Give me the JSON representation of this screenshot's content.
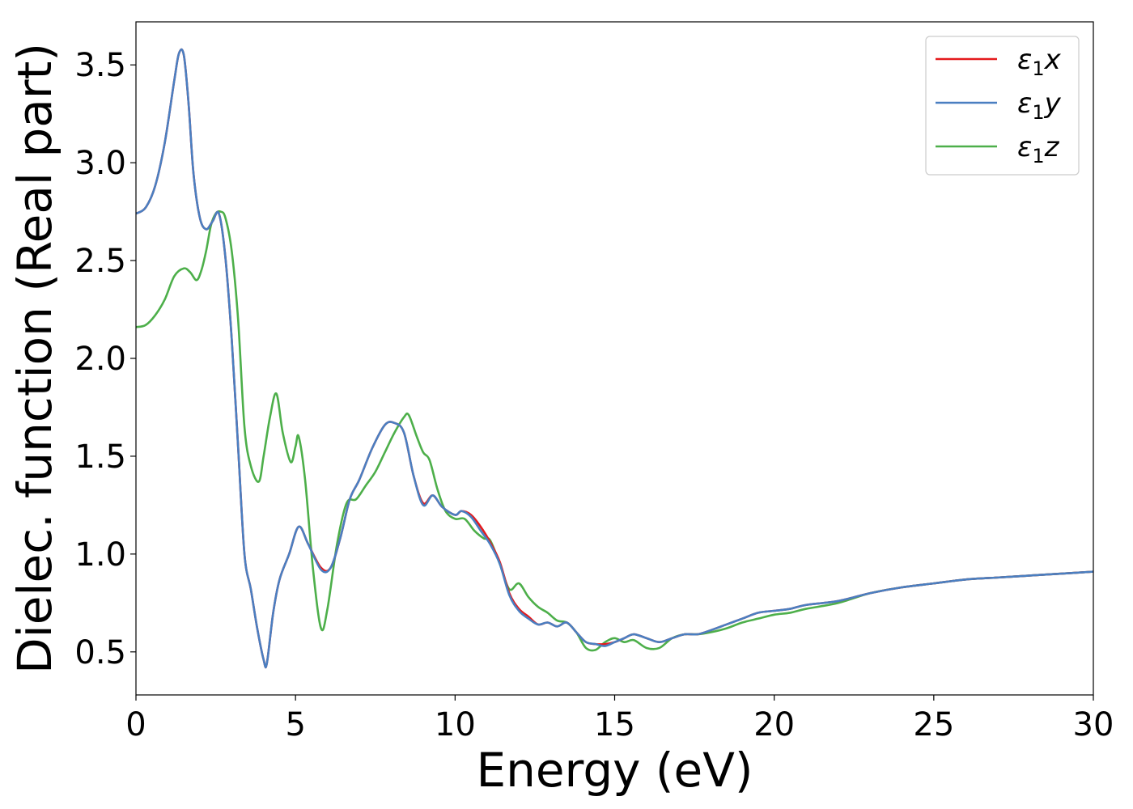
{
  "chart_data": {
    "type": "line",
    "title": "",
    "xlabel": "Energy (eV)",
    "ylabel": "Dielec. function (Real part)",
    "xlim": [
      0,
      30
    ],
    "ylim": [
      0.28,
      3.72
    ],
    "xticks": [
      0,
      5,
      10,
      15,
      20,
      25,
      30
    ],
    "xtick_labels": [
      "0",
      "5",
      "10",
      "15",
      "20",
      "25",
      "30"
    ],
    "yticks": [
      0.5,
      1.0,
      1.5,
      2.0,
      2.5,
      3.0,
      3.5
    ],
    "ytick_labels": [
      "0.5",
      "1.0",
      "1.5",
      "2.0",
      "2.5",
      "3.0",
      "3.5"
    ],
    "grid": false,
    "legend_position": "top-right",
    "series": [
      {
        "name": "ε1x",
        "legend_base": "ε",
        "legend_sub": "1",
        "legend_var": "x",
        "color": "#e41a1c",
        "x": [
          0,
          0.3,
          0.6,
          0.9,
          1.2,
          1.35,
          1.5,
          1.65,
          1.8,
          2.0,
          2.2,
          2.4,
          2.6,
          2.8,
          3.0,
          3.2,
          3.4,
          3.6,
          3.8,
          4.0,
          4.1,
          4.3,
          4.5,
          4.8,
          5.1,
          5.4,
          5.8,
          6.1,
          6.4,
          6.7,
          7.0,
          7.4,
          7.8,
          8.1,
          8.4,
          8.7,
          9.0,
          9.3,
          9.6,
          10.0,
          10.2,
          10.5,
          10.8,
          11.1,
          11.4,
          11.7,
          12.0,
          12.3,
          12.6,
          12.9,
          13.2,
          13.5,
          13.8,
          14.1,
          14.4,
          14.7,
          15.0,
          15.3,
          15.6,
          16.0,
          16.4,
          16.8,
          17.2,
          17.6,
          18.0,
          18.5,
          19.0,
          19.5,
          20.0,
          20.5,
          21.0,
          22.0,
          23.0,
          24.0,
          25.0,
          26.0,
          27.0,
          28.0,
          29.0,
          30.0
        ],
        "y": [
          2.74,
          2.77,
          2.88,
          3.1,
          3.42,
          3.56,
          3.55,
          3.3,
          2.95,
          2.72,
          2.66,
          2.7,
          2.74,
          2.52,
          2.1,
          1.55,
          1.0,
          0.82,
          0.62,
          0.46,
          0.44,
          0.7,
          0.87,
          1.0,
          1.14,
          1.05,
          0.93,
          0.93,
          1.08,
          1.28,
          1.38,
          1.54,
          1.66,
          1.67,
          1.62,
          1.4,
          1.26,
          1.3,
          1.24,
          1.2,
          1.22,
          1.2,
          1.14,
          1.06,
          0.96,
          0.8,
          0.72,
          0.68,
          0.64,
          0.65,
          0.63,
          0.65,
          0.6,
          0.55,
          0.54,
          0.54,
          0.55,
          0.57,
          0.59,
          0.57,
          0.55,
          0.57,
          0.59,
          0.59,
          0.61,
          0.64,
          0.67,
          0.7,
          0.71,
          0.72,
          0.74,
          0.76,
          0.8,
          0.83,
          0.85,
          0.87,
          0.88,
          0.89,
          0.9,
          0.91
        ]
      },
      {
        "name": "ε1y",
        "legend_base": "ε",
        "legend_sub": "1",
        "legend_var": "y",
        "color": "#4a7fc1",
        "x": [
          0,
          0.3,
          0.6,
          0.9,
          1.2,
          1.35,
          1.5,
          1.65,
          1.8,
          2.0,
          2.2,
          2.4,
          2.6,
          2.8,
          3.0,
          3.2,
          3.4,
          3.6,
          3.8,
          4.0,
          4.1,
          4.3,
          4.5,
          4.8,
          5.1,
          5.4,
          5.8,
          6.1,
          6.4,
          6.7,
          7.0,
          7.4,
          7.8,
          8.1,
          8.4,
          8.7,
          9.0,
          9.3,
          9.6,
          10.0,
          10.2,
          10.5,
          10.8,
          11.1,
          11.4,
          11.7,
          12.0,
          12.3,
          12.6,
          12.9,
          13.2,
          13.5,
          13.8,
          14.1,
          14.4,
          14.7,
          15.0,
          15.3,
          15.6,
          16.0,
          16.4,
          16.8,
          17.2,
          17.6,
          18.0,
          18.5,
          19.0,
          19.5,
          20.0,
          20.5,
          21.0,
          22.0,
          23.0,
          24.0,
          25.0,
          26.0,
          27.0,
          28.0,
          29.0,
          30.0
        ],
        "y": [
          2.74,
          2.77,
          2.88,
          3.1,
          3.42,
          3.56,
          3.55,
          3.3,
          2.95,
          2.72,
          2.66,
          2.7,
          2.74,
          2.52,
          2.1,
          1.55,
          1.0,
          0.82,
          0.62,
          0.46,
          0.44,
          0.7,
          0.87,
          1.0,
          1.14,
          1.05,
          0.92,
          0.93,
          1.08,
          1.28,
          1.38,
          1.54,
          1.66,
          1.67,
          1.62,
          1.4,
          1.25,
          1.3,
          1.24,
          1.2,
          1.22,
          1.19,
          1.12,
          1.05,
          0.95,
          0.79,
          0.71,
          0.67,
          0.64,
          0.65,
          0.63,
          0.65,
          0.6,
          0.55,
          0.54,
          0.53,
          0.55,
          0.57,
          0.59,
          0.57,
          0.55,
          0.57,
          0.59,
          0.59,
          0.61,
          0.64,
          0.67,
          0.7,
          0.71,
          0.72,
          0.74,
          0.76,
          0.8,
          0.83,
          0.85,
          0.87,
          0.88,
          0.89,
          0.9,
          0.91
        ]
      },
      {
        "name": "ε1z",
        "legend_base": "ε",
        "legend_sub": "1",
        "legend_var": "z",
        "color": "#4daf4a",
        "x": [
          0,
          0.3,
          0.6,
          0.9,
          1.2,
          1.5,
          1.7,
          1.9,
          2.05,
          2.2,
          2.35,
          2.5,
          2.65,
          2.8,
          3.0,
          3.2,
          3.4,
          3.6,
          3.85,
          4.0,
          4.2,
          4.4,
          4.6,
          4.85,
          5.0,
          5.1,
          5.3,
          5.55,
          5.8,
          6.0,
          6.3,
          6.6,
          6.9,
          7.2,
          7.5,
          7.8,
          8.1,
          8.4,
          8.55,
          8.8,
          9.0,
          9.2,
          9.45,
          9.7,
          10.0,
          10.3,
          10.6,
          10.9,
          11.1,
          11.4,
          11.7,
          12.0,
          12.3,
          12.6,
          12.9,
          13.2,
          13.5,
          13.8,
          14.1,
          14.4,
          14.7,
          15.0,
          15.3,
          15.6,
          16.0,
          16.4,
          16.8,
          17.2,
          17.6,
          18.0,
          18.5,
          19.0,
          19.5,
          20.0,
          20.5,
          21.0,
          22.0,
          23.0,
          24.0,
          25.0,
          26.0,
          27.0,
          28.0,
          29.0,
          30.0
        ],
        "y": [
          2.16,
          2.17,
          2.22,
          2.3,
          2.42,
          2.46,
          2.44,
          2.4,
          2.45,
          2.55,
          2.68,
          2.74,
          2.75,
          2.72,
          2.55,
          2.2,
          1.65,
          1.45,
          1.37,
          1.5,
          1.7,
          1.82,
          1.62,
          1.47,
          1.55,
          1.6,
          1.38,
          0.92,
          0.62,
          0.72,
          1.05,
          1.26,
          1.28,
          1.35,
          1.42,
          1.52,
          1.62,
          1.7,
          1.71,
          1.6,
          1.52,
          1.48,
          1.33,
          1.22,
          1.18,
          1.18,
          1.12,
          1.08,
          1.07,
          0.95,
          0.82,
          0.85,
          0.78,
          0.73,
          0.7,
          0.66,
          0.65,
          0.6,
          0.52,
          0.51,
          0.55,
          0.57,
          0.55,
          0.56,
          0.52,
          0.52,
          0.57,
          0.59,
          0.59,
          0.6,
          0.62,
          0.65,
          0.67,
          0.69,
          0.7,
          0.72,
          0.75,
          0.8,
          0.83,
          0.85,
          0.87,
          0.88,
          0.89,
          0.9,
          0.91
        ]
      }
    ]
  }
}
